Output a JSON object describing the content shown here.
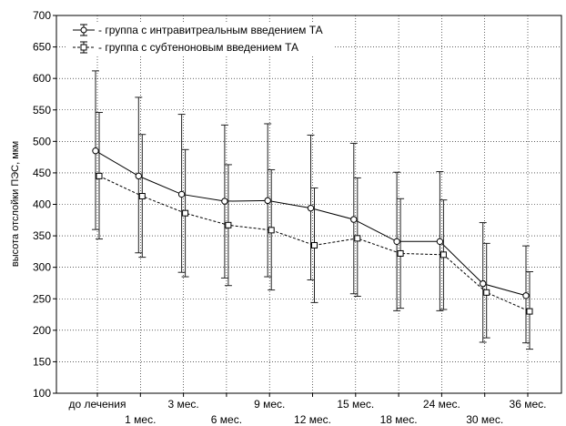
{
  "chart_data": {
    "type": "line",
    "title": "",
    "xlabel": "",
    "ylabel": "высота отслойки ПЭС, мкм",
    "ylim": [
      100,
      700
    ],
    "yticks": [
      100,
      150,
      200,
      250,
      300,
      350,
      400,
      450,
      500,
      550,
      600,
      650,
      700
    ],
    "grid": true,
    "legend_position": "top-left",
    "categories": [
      "до лечения",
      "1 мес.",
      "3 мес.",
      "6 мес.",
      "9 мес.",
      "12 мес.",
      "15 мес.",
      "18 мес.",
      "24 мес.",
      "30 мес.",
      "36 мес."
    ],
    "series": [
      {
        "name": "- группа с интравитреальным введением ТА",
        "marker": "circle",
        "line": "solid",
        "values": [
          485,
          445,
          416,
          405,
          406,
          394,
          376,
          341,
          341,
          274,
          255
        ],
        "err_low": [
          360,
          323,
          292,
          283,
          285,
          280,
          258,
          231,
          231,
          181,
          180
        ],
        "err_high": [
          612,
          570,
          543,
          526,
          528,
          510,
          497,
          451,
          452,
          371,
          334
        ]
      },
      {
        "name": "- группа с субтеноновым введением ТА",
        "marker": "square",
        "line": "dashed",
        "values": [
          445,
          413,
          386,
          367,
          359,
          335,
          346,
          322,
          320,
          260,
          230
        ],
        "err_low": [
          345,
          316,
          285,
          271,
          264,
          244,
          254,
          235,
          233,
          188,
          170
        ],
        "err_high": [
          546,
          511,
          487,
          463,
          455,
          426,
          442,
          409,
          407,
          338,
          293
        ]
      }
    ]
  }
}
